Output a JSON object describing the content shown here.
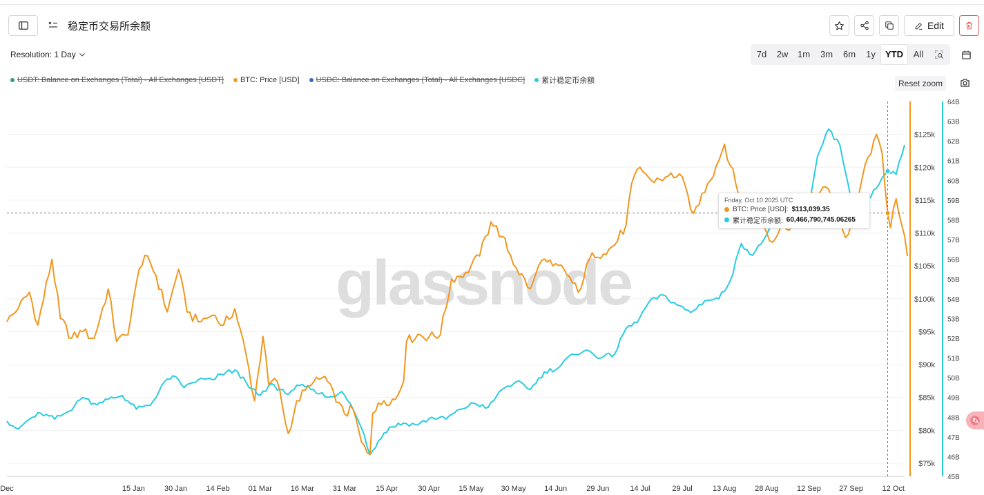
{
  "header": {
    "title": "稳定币交易所余额",
    "edit_label": "Edit"
  },
  "controls": {
    "resolution_label": "Resolution: 1 Day",
    "ranges": [
      "7d",
      "2w",
      "1m",
      "3m",
      "6m",
      "1y",
      "YTD",
      "All"
    ],
    "active_range": "YTD",
    "reset_zoom_label": "Reset zoom"
  },
  "colors": {
    "usdt": "#2e9e7a",
    "btc": "#f2961d",
    "usdc": "#3d63c9",
    "stable": "#27cce0"
  },
  "legend": [
    {
      "label": "USDT: Balance on Exchanges (Total) - All Exchanges [USDT]",
      "color": "#2e9e7a",
      "hidden": true
    },
    {
      "label": "BTC: Price [USD]",
      "color": "#f2961d",
      "hidden": false
    },
    {
      "label": "USDC: Balance on Exchanges (Total) - All Exchanges [USDC]",
      "color": "#3d63c9",
      "hidden": true
    },
    {
      "label": "累计稳定币余额",
      "color": "#27cce0",
      "hidden": false
    }
  ],
  "tooltip": {
    "date": "Friday, Oct 10 2025 UTC",
    "btc_label": "BTC: Price [USD]:",
    "btc_value": "$113,039.35",
    "stable_label": "累计稳定币余额:",
    "stable_value": "60,466,790,745.06265"
  },
  "watermark": "glassnode",
  "chart_data": {
    "type": "line",
    "x_range": [
      "2024-12-01",
      "2025-10-16"
    ],
    "x_ticks": [
      "Dec",
      "15 Jan",
      "30 Jan",
      "14 Feb",
      "01 Mar",
      "16 Mar",
      "31 Mar",
      "15 Apr",
      "30 Apr",
      "15 May",
      "30 May",
      "14 Jun",
      "29 Jun",
      "14 Jul",
      "29 Jul",
      "13 Aug",
      "28 Aug",
      "12 Sep",
      "27 Sep",
      "12 Oct"
    ],
    "price_axis": {
      "ylim": [
        73000,
        130000
      ],
      "tick_values": [
        75000,
        80000,
        85000,
        90000,
        95000,
        100000,
        105000,
        110000,
        115000,
        120000,
        125000
      ],
      "tick_labels": [
        "$75k",
        "$80k",
        "$85k",
        "$90k",
        "$95k",
        "$100k",
        "$105k",
        "$110k",
        "$115k",
        "$120k",
        "$125k"
      ]
    },
    "balance_axis": {
      "ylim": [
        45,
        64
      ],
      "tick_values": [
        45,
        46,
        47,
        48,
        49,
        50,
        51,
        52,
        53,
        54,
        55,
        56,
        57,
        58,
        59,
        60,
        61,
        62,
        63,
        64
      ],
      "tick_labels": [
        "45B",
        "46B",
        "47B",
        "48B",
        "49B",
        "50B",
        "51B",
        "52B",
        "53B",
        "54B",
        "55B",
        "56B",
        "57B",
        "58B",
        "59B",
        "60B",
        "61B",
        "62B",
        "63B",
        "64B"
      ]
    },
    "crosshair_date": "2025-10-10",
    "series": [
      {
        "name": "BTC: Price [USD]",
        "axis": "price",
        "color": "#f2961d",
        "points": [
          [
            "2024-12-01",
            96500
          ],
          [
            "2024-12-05",
            98500
          ],
          [
            "2024-12-09",
            101000
          ],
          [
            "2024-12-12",
            96000
          ],
          [
            "2024-12-17",
            106000
          ],
          [
            "2024-12-20",
            97000
          ],
          [
            "2024-12-24",
            94000
          ],
          [
            "2024-12-28",
            95000
          ],
          [
            "2025-01-01",
            94000
          ],
          [
            "2025-01-06",
            101500
          ],
          [
            "2025-01-09",
            93500
          ],
          [
            "2025-01-13",
            94500
          ],
          [
            "2025-01-17",
            104500
          ],
          [
            "2025-01-20",
            106500
          ],
          [
            "2025-01-23",
            103500
          ],
          [
            "2025-01-27",
            98000
          ],
          [
            "2025-01-31",
            104500
          ],
          [
            "2025-02-03",
            98000
          ],
          [
            "2025-02-07",
            96500
          ],
          [
            "2025-02-12",
            97500
          ],
          [
            "2025-02-16",
            96000
          ],
          [
            "2025-02-20",
            98500
          ],
          [
            "2025-02-24",
            91500
          ],
          [
            "2025-02-27",
            84500
          ],
          [
            "2025-03-02",
            94300
          ],
          [
            "2025-03-04",
            87000
          ],
          [
            "2025-03-07",
            87500
          ],
          [
            "2025-03-11",
            79500
          ],
          [
            "2025-03-14",
            84500
          ],
          [
            "2025-03-19",
            86800
          ],
          [
            "2025-03-24",
            88200
          ],
          [
            "2025-03-28",
            84300
          ],
          [
            "2025-03-31",
            82500
          ],
          [
            "2025-04-03",
            83200
          ],
          [
            "2025-04-06",
            78200
          ],
          [
            "2025-04-09",
            76300
          ],
          [
            "2025-04-10",
            82600
          ],
          [
            "2025-04-14",
            84500
          ],
          [
            "2025-04-18",
            84700
          ],
          [
            "2025-04-21",
            87500
          ],
          [
            "2025-04-22",
            93500
          ],
          [
            "2025-04-26",
            94600
          ],
          [
            "2025-04-30",
            94200
          ],
          [
            "2025-05-04",
            94500
          ],
          [
            "2025-05-08",
            103000
          ],
          [
            "2025-05-13",
            104000
          ],
          [
            "2025-05-18",
            106500
          ],
          [
            "2025-05-22",
            111700
          ],
          [
            "2025-05-26",
            109500
          ],
          [
            "2025-05-31",
            104700
          ],
          [
            "2025-06-05",
            101500
          ],
          [
            "2025-06-09",
            105800
          ],
          [
            "2025-06-13",
            105000
          ],
          [
            "2025-06-17",
            104500
          ],
          [
            "2025-06-22",
            101000
          ],
          [
            "2025-06-27",
            107000
          ],
          [
            "2025-07-01",
            106800
          ],
          [
            "2025-07-05",
            108200
          ],
          [
            "2025-07-09",
            111200
          ],
          [
            "2025-07-11",
            117500
          ],
          [
            "2025-07-14",
            120000
          ],
          [
            "2025-07-18",
            118000
          ],
          [
            "2025-07-23",
            118500
          ],
          [
            "2025-07-28",
            119000
          ],
          [
            "2025-08-02",
            113000
          ],
          [
            "2025-08-07",
            117500
          ],
          [
            "2025-08-11",
            121000
          ],
          [
            "2025-08-13",
            123500
          ],
          [
            "2025-08-17",
            117500
          ],
          [
            "2025-08-20",
            114000
          ],
          [
            "2025-08-24",
            111500
          ],
          [
            "2025-08-27",
            111000
          ],
          [
            "2025-08-30",
            108600
          ],
          [
            "2025-09-02",
            111000
          ],
          [
            "2025-09-06",
            111200
          ],
          [
            "2025-09-10",
            114000
          ],
          [
            "2025-09-14",
            116000
          ],
          [
            "2025-09-18",
            117000
          ],
          [
            "2025-09-21",
            115500
          ],
          [
            "2025-09-25",
            109300
          ],
          [
            "2025-09-28",
            112100
          ],
          [
            "2025-10-01",
            118500
          ],
          [
            "2025-10-05",
            124000
          ],
          [
            "2025-10-06",
            125000
          ],
          [
            "2025-10-08",
            122200
          ],
          [
            "2025-10-10",
            113039
          ],
          [
            "2025-10-11",
            110800
          ],
          [
            "2025-10-13",
            115200
          ],
          [
            "2025-10-15",
            111200
          ],
          [
            "2025-10-17",
            106500
          ]
        ]
      },
      {
        "name": "累计稳定币余额",
        "axis": "balance",
        "color": "#27cce0",
        "points": [
          [
            "2024-12-01",
            47.8
          ],
          [
            "2024-12-05",
            47.4
          ],
          [
            "2024-12-09",
            47.9
          ],
          [
            "2024-12-13",
            48.2
          ],
          [
            "2024-12-18",
            47.9
          ],
          [
            "2024-12-23",
            48.3
          ],
          [
            "2024-12-28",
            49.0
          ],
          [
            "2025-01-01",
            48.7
          ],
          [
            "2025-01-06",
            48.9
          ],
          [
            "2025-01-11",
            49.1
          ],
          [
            "2025-01-16",
            48.4
          ],
          [
            "2025-01-21",
            48.6
          ],
          [
            "2025-01-26",
            49.8
          ],
          [
            "2025-01-29",
            50.1
          ],
          [
            "2025-02-02",
            49.5
          ],
          [
            "2025-02-07",
            49.9
          ],
          [
            "2025-02-12",
            49.9
          ],
          [
            "2025-02-17",
            50.3
          ],
          [
            "2025-02-21",
            50.3
          ],
          [
            "2025-02-25",
            49.5
          ],
          [
            "2025-03-01",
            49.1
          ],
          [
            "2025-03-05",
            49.7
          ],
          [
            "2025-03-10",
            49.2
          ],
          [
            "2025-03-15",
            49.6
          ],
          [
            "2025-03-20",
            49.4
          ],
          [
            "2025-03-25",
            49.0
          ],
          [
            "2025-03-30",
            49.3
          ],
          [
            "2025-04-03",
            48.4
          ],
          [
            "2025-04-07",
            47.1
          ],
          [
            "2025-04-09",
            46.1
          ],
          [
            "2025-04-12",
            46.8
          ],
          [
            "2025-04-16",
            47.5
          ],
          [
            "2025-04-21",
            47.7
          ],
          [
            "2025-04-26",
            47.6
          ],
          [
            "2025-05-01",
            48.0
          ],
          [
            "2025-05-06",
            47.9
          ],
          [
            "2025-05-11",
            48.4
          ],
          [
            "2025-05-16",
            48.7
          ],
          [
            "2025-05-21",
            48.5
          ],
          [
            "2025-05-26",
            49.4
          ],
          [
            "2025-05-31",
            49.8
          ],
          [
            "2025-06-05",
            49.4
          ],
          [
            "2025-06-10",
            50.3
          ],
          [
            "2025-06-15",
            50.5
          ],
          [
            "2025-06-20",
            51.2
          ],
          [
            "2025-06-25",
            51.4
          ],
          [
            "2025-06-30",
            51.0
          ],
          [
            "2025-07-05",
            51.2
          ],
          [
            "2025-07-09",
            52.5
          ],
          [
            "2025-07-13",
            52.8
          ],
          [
            "2025-07-17",
            53.8
          ],
          [
            "2025-07-22",
            54.2
          ],
          [
            "2025-07-27",
            53.7
          ],
          [
            "2025-08-01",
            53.3
          ],
          [
            "2025-08-06",
            53.9
          ],
          [
            "2025-08-11",
            54.0
          ],
          [
            "2025-08-15",
            54.9
          ],
          [
            "2025-08-19",
            56.8
          ],
          [
            "2025-08-23",
            56.2
          ],
          [
            "2025-08-27",
            57.0
          ],
          [
            "2025-08-31",
            57.9
          ],
          [
            "2025-09-04",
            58.5
          ],
          [
            "2025-09-08",
            58.3
          ],
          [
            "2025-09-12",
            58.8
          ],
          [
            "2025-09-15",
            61.2
          ],
          [
            "2025-09-19",
            62.6
          ],
          [
            "2025-09-23",
            61.8
          ],
          [
            "2025-09-27",
            59.0
          ],
          [
            "2025-09-30",
            59.2
          ],
          [
            "2025-10-03",
            59.0
          ],
          [
            "2025-10-06",
            59.6
          ],
          [
            "2025-10-10",
            60.47
          ],
          [
            "2025-10-13",
            60.3
          ],
          [
            "2025-10-16",
            61.8
          ]
        ]
      }
    ]
  }
}
